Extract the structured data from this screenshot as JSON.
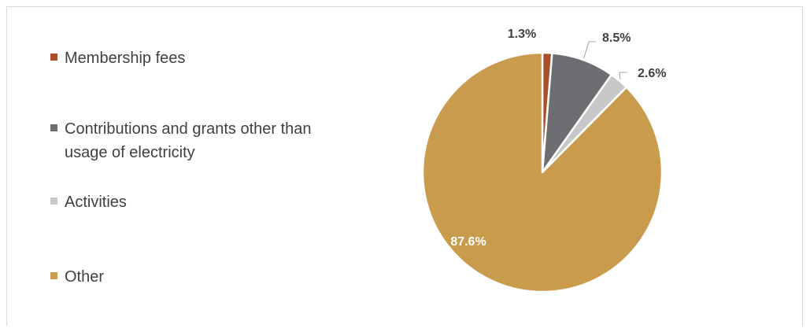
{
  "chart_data": {
    "type": "pie",
    "title": "",
    "legend_position": "left",
    "series": [
      {
        "values": [
          1.3,
          8.5,
          2.6,
          87.6
        ]
      }
    ],
    "categories": [
      "Membership fees",
      "Contributions and grants other than usage of electricity",
      "Activities",
      "Other"
    ],
    "slices": [
      {
        "label": "Membership fees",
        "value": 1.3,
        "display": "1.3%",
        "color": "#A9502B"
      },
      {
        "label": "Contributions and grants other than usage of electricity",
        "value": 8.5,
        "display": "8.5%",
        "color": "#6D6E71"
      },
      {
        "label": "Activities",
        "value": 2.6,
        "display": "2.6%",
        "color": "#C8C8C8"
      },
      {
        "label": "Other",
        "value": 87.6,
        "display": "87.6%",
        "color": "#C99B4C"
      }
    ]
  },
  "legend": {
    "items": [
      {
        "label": "Membership fees",
        "color": "#A9502B"
      },
      {
        "label": "Contributions and grants other than usage of electricity",
        "color": "#6D6E71"
      },
      {
        "label": "Activities",
        "color": "#C8C8C8"
      },
      {
        "label": "Other",
        "color": "#C99B4C"
      }
    ]
  },
  "colors": {
    "label_text": "#404040",
    "inside_label_text": "#ffffff",
    "leader_line": "#a6a6a6",
    "slice_border": "#ffffff"
  }
}
